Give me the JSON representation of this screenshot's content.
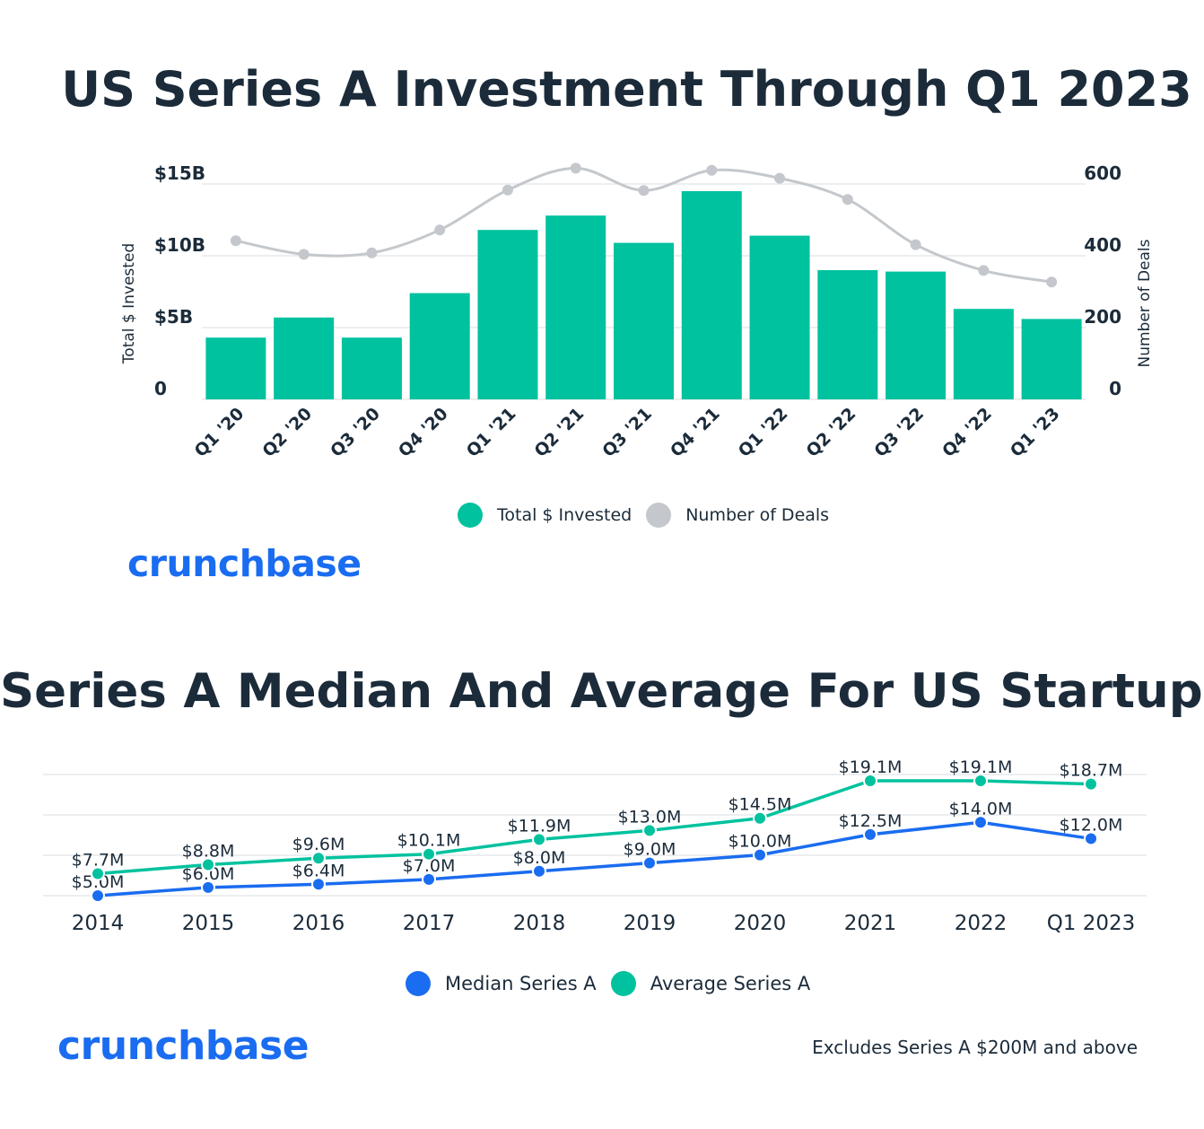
{
  "chart_data": [
    {
      "type": "bar",
      "title": "US Series A Investment Through Q1 2023",
      "categories": [
        "Q1 '20",
        "Q2 '20",
        "Q3 '20",
        "Q4 '20",
        "Q1 '21",
        "Q2 '21",
        "Q3 '21",
        "Q4 '21",
        "Q1 '22",
        "Q2 '22",
        "Q3 '22",
        "Q4 '22",
        "Q1 '23"
      ],
      "series": [
        {
          "name": "Total $ Invested",
          "type": "bar",
          "axis": "left",
          "color": "#00c29e",
          "values": [
            4.3,
            5.7,
            4.3,
            7.4,
            11.8,
            12.8,
            10.9,
            14.5,
            11.4,
            9.0,
            8.9,
            6.3,
            5.6
          ]
        },
        {
          "name": "Number of Deals",
          "type": "line",
          "axis": "right",
          "color": "#c4c8cc",
          "values": [
            442,
            404,
            408,
            472,
            583,
            644,
            582,
            638,
            616,
            557,
            431,
            359,
            327
          ]
        }
      ],
      "ylabel": "Total $ Invested",
      "ylabel_right": "Number of Deals",
      "ylim": [
        0,
        15
      ],
      "yticks": [
        "0",
        "$5B",
        "$10B",
        "$15B"
      ],
      "ylim_right": [
        0,
        600
      ],
      "yticks_right": [
        "0",
        "200",
        "400",
        "600"
      ],
      "grid": true,
      "legend": "bottom"
    },
    {
      "type": "line",
      "title": "Series A Median And Average For US Startups",
      "categories": [
        "2014",
        "2015",
        "2016",
        "2017",
        "2018",
        "2019",
        "2020",
        "2021",
        "2022",
        "Q1 2023"
      ],
      "series": [
        {
          "name": "Median Series A",
          "color": "#1a6cf0",
          "values": [
            5.0,
            6.0,
            6.4,
            7.0,
            8.0,
            9.0,
            10.0,
            12.5,
            14.0,
            12.0
          ],
          "labels": [
            "$5.0M",
            "$6.0M",
            "$6.4M",
            "$7.0M",
            "$8.0M",
            "$9.0M",
            "$10.0M",
            "$12.5M",
            "$14.0M",
            "$12.0M"
          ]
        },
        {
          "name": "Average Series A",
          "color": "#00c29e",
          "values": [
            7.7,
            8.8,
            9.6,
            10.1,
            11.9,
            13.0,
            14.5,
            19.1,
            19.1,
            18.7
          ],
          "labels": [
            "$7.7M",
            "$8.8M",
            "$9.6M",
            "$10.1M",
            "$11.9M",
            "$13.0M",
            "$14.5M",
            "$19.1M",
            "$19.1M",
            "$18.7M"
          ]
        }
      ],
      "grid": true,
      "legend": "bottom"
    }
  ],
  "logo_text": "crunchbase",
  "footnote": "Excludes Series A $200M and above"
}
